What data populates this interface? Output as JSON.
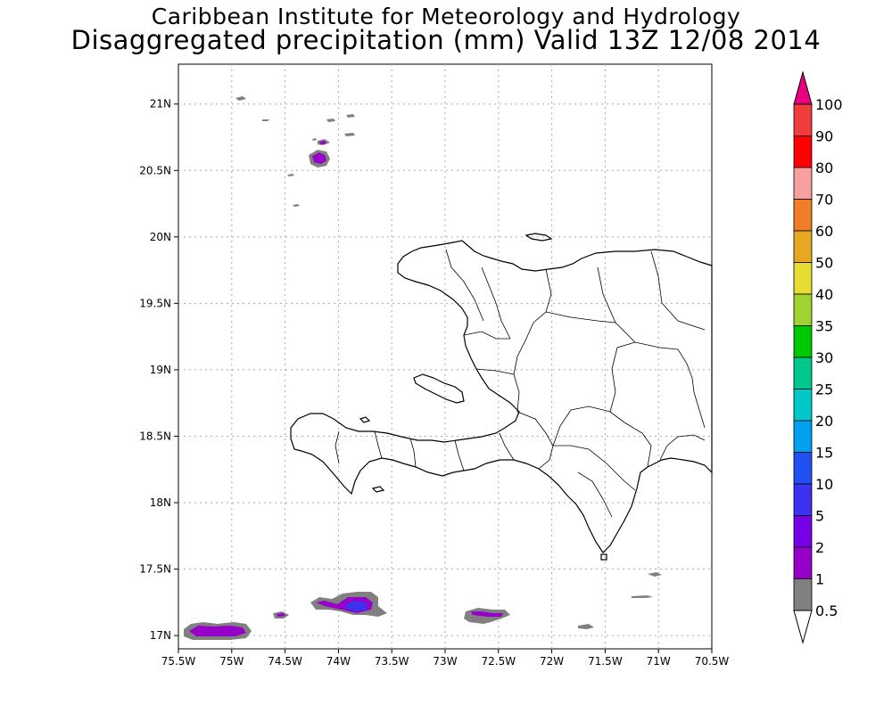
{
  "title": {
    "line1": "Caribbean Institute for Meteorology and Hydrology",
    "line2": "Disaggregated precipitation (mm) Valid 13Z 12/08 2014"
  },
  "axes": {
    "lon_ticks": [
      "75.5W",
      "75W",
      "74.5W",
      "74W",
      "73.5W",
      "73W",
      "72.5W",
      "72W",
      "71.5W",
      "71W",
      "70.5W"
    ],
    "lat_ticks": [
      "21N",
      "20.5N",
      "20N",
      "19.5N",
      "19N",
      "18.5N",
      "18N",
      "17.5N",
      "17N"
    ],
    "lon_range": [
      -75.5,
      -70.5
    ],
    "lat_range": [
      16.9,
      21.3
    ],
    "grid": "dotted"
  },
  "colorbar": {
    "labels": [
      "100",
      "90",
      "80",
      "70",
      "60",
      "50",
      "40",
      "35",
      "30",
      "25",
      "20",
      "15",
      "10",
      "5",
      "2",
      "1",
      "0.5"
    ],
    "colors": [
      "#e8007f",
      "#f03c3c",
      "#ff0000",
      "#f8a0a0",
      "#f07e28",
      "#e6a823",
      "#e6dc32",
      "#a0d232",
      "#00c800",
      "#00c88c",
      "#00c8c8",
      "#00a0f0",
      "#2050f0",
      "#3c32f0",
      "#7800e6",
      "#9600c8",
      "#808080"
    ]
  },
  "precip_cells": [
    {
      "lon": -75.1,
      "lat": 17.0,
      "level": "2",
      "color": "#9600c8"
    },
    {
      "lon": -73.85,
      "lat": 17.2,
      "level": "15",
      "color": "#2050f0"
    },
    {
      "lon": -72.6,
      "lat": 17.13,
      "level": "2",
      "color": "#9600c8"
    },
    {
      "lon": -74.2,
      "lat": 20.6,
      "level": "2",
      "color": "#9600c8"
    }
  ]
}
